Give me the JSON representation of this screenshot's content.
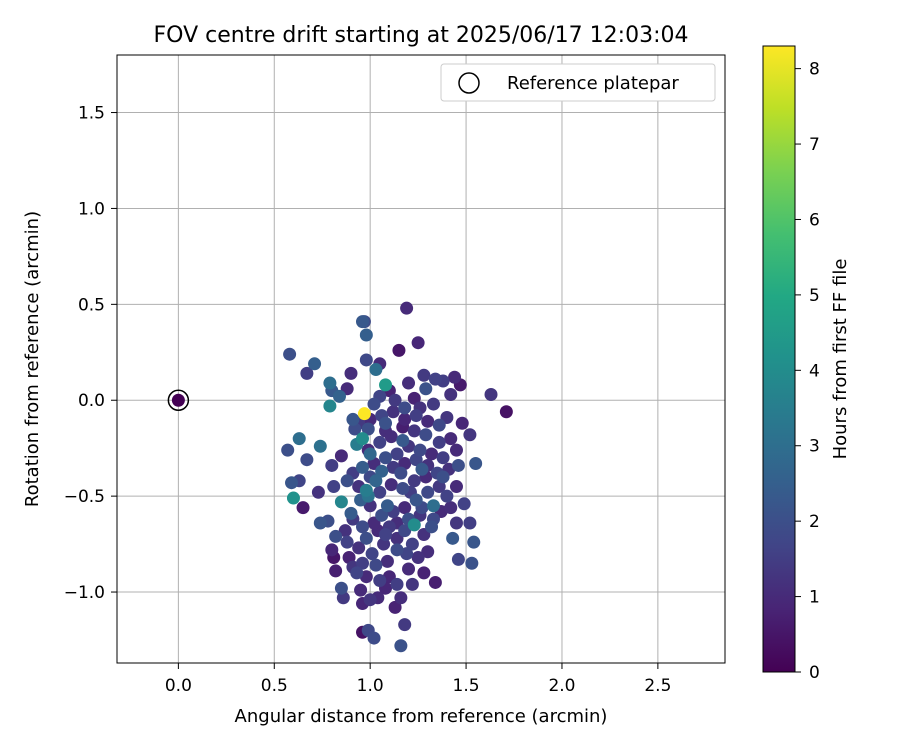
{
  "chart_data": {
    "type": "scatter",
    "title": "FOV centre drift starting at 2025/06/17 12:03:04",
    "xlabel": "Angular distance from reference (arcmin)",
    "ylabel": "Rotation from reference (arcmin)",
    "xlim": [
      -0.32,
      2.85
    ],
    "ylim": [
      -1.37,
      1.8
    ],
    "xticks": [
      0.0,
      0.5,
      1.0,
      1.5,
      2.0,
      2.5
    ],
    "xtick_labels": [
      "0.0",
      "0.5",
      "1.0",
      "1.5",
      "2.0",
      "2.5"
    ],
    "yticks": [
      -1.0,
      -0.5,
      0.0,
      0.5,
      1.0,
      1.5
    ],
    "ytick_labels": [
      "−1.0",
      "−0.5",
      "0.0",
      "0.5",
      "1.0",
      "1.5"
    ],
    "grid": true,
    "legend": {
      "position": "top-right",
      "entries": [
        "Reference platepar"
      ]
    },
    "reference_point": {
      "x": 0.0,
      "y": 0.0
    },
    "colorbar": {
      "label": "Hours from first FF file",
      "min": 0,
      "max": 8.3,
      "ticks": [
        0,
        1,
        2,
        3,
        4,
        5,
        6,
        7,
        8
      ],
      "tick_labels": [
        "0",
        "1",
        "2",
        "3",
        "4",
        "5",
        "6",
        "7",
        "8"
      ],
      "colormap": "viridis"
    },
    "points": [
      {
        "x": 1.19,
        "y": 0.48,
        "h": 1.0
      },
      {
        "x": 0.96,
        "y": 0.41,
        "h": 2.3
      },
      {
        "x": 0.98,
        "y": 0.34,
        "h": 2.5
      },
      {
        "x": 0.97,
        "y": 0.41,
        "h": 1.9
      },
      {
        "x": 1.25,
        "y": 0.3,
        "h": 0.9
      },
      {
        "x": 0.58,
        "y": 0.24,
        "h": 2.0
      },
      {
        "x": 0.71,
        "y": 0.19,
        "h": 2.5
      },
      {
        "x": 1.05,
        "y": 0.19,
        "h": 1.0
      },
      {
        "x": 1.15,
        "y": 0.26,
        "h": 0.5
      },
      {
        "x": 0.98,
        "y": 0.21,
        "h": 1.8
      },
      {
        "x": 0.67,
        "y": 0.14,
        "h": 1.5
      },
      {
        "x": 1.03,
        "y": 0.16,
        "h": 3.0
      },
      {
        "x": 1.08,
        "y": 0.08,
        "h": 4.5
      },
      {
        "x": 0.9,
        "y": 0.14,
        "h": 1.1
      },
      {
        "x": 1.28,
        "y": 0.13,
        "h": 1.4
      },
      {
        "x": 1.34,
        "y": 0.11,
        "h": 1.6
      },
      {
        "x": 1.44,
        "y": 0.12,
        "h": 1.0
      },
      {
        "x": 1.47,
        "y": 0.08,
        "h": 0.6
      },
      {
        "x": 1.63,
        "y": 0.03,
        "h": 1.3
      },
      {
        "x": 0.79,
        "y": 0.09,
        "h": 3.0
      },
      {
        "x": 0.8,
        "y": 0.05,
        "h": 2.3
      },
      {
        "x": 0.84,
        "y": 0.02,
        "h": 2.6
      },
      {
        "x": 0.79,
        "y": -0.03,
        "h": 3.8
      },
      {
        "x": 0.88,
        "y": 0.06,
        "h": 1.0
      },
      {
        "x": 1.1,
        "y": 0.05,
        "h": 0.8
      },
      {
        "x": 1.2,
        "y": 0.09,
        "h": 1.1
      },
      {
        "x": 1.29,
        "y": 0.06,
        "h": 2.1
      },
      {
        "x": 1.38,
        "y": 0.1,
        "h": 1.5
      },
      {
        "x": 1.42,
        "y": 0.03,
        "h": 1.2
      },
      {
        "x": 1.23,
        "y": 0.01,
        "h": 0.8
      },
      {
        "x": 1.71,
        "y": -0.06,
        "h": 0.4
      },
      {
        "x": 0.97,
        "y": -0.07,
        "h": 8.3
      },
      {
        "x": 0.91,
        "y": -0.1,
        "h": 2.2
      },
      {
        "x": 1.02,
        "y": -0.02,
        "h": 1.9
      },
      {
        "x": 1.33,
        "y": -0.02,
        "h": 1.4
      },
      {
        "x": 1.4,
        "y": -0.09,
        "h": 1.3
      },
      {
        "x": 1.48,
        "y": -0.12,
        "h": 0.9
      },
      {
        "x": 1.52,
        "y": -0.18,
        "h": 1.3
      },
      {
        "x": 1.17,
        "y": -0.14,
        "h": 0.7
      },
      {
        "x": 1.08,
        "y": -0.16,
        "h": 1.1
      },
      {
        "x": 0.92,
        "y": -0.15,
        "h": 1.9
      },
      {
        "x": 0.96,
        "y": -0.2,
        "h": 4.0
      },
      {
        "x": 0.93,
        "y": -0.23,
        "h": 3.5
      },
      {
        "x": 0.99,
        "y": -0.26,
        "h": 1.0
      },
      {
        "x": 0.63,
        "y": -0.2,
        "h": 3.0
      },
      {
        "x": 0.57,
        "y": -0.26,
        "h": 2.0
      },
      {
        "x": 0.74,
        "y": -0.24,
        "h": 3.1
      },
      {
        "x": 0.67,
        "y": -0.31,
        "h": 1.9
      },
      {
        "x": 0.8,
        "y": -0.34,
        "h": 1.5
      },
      {
        "x": 0.85,
        "y": -0.29,
        "h": 1.0
      },
      {
        "x": 0.59,
        "y": -0.43,
        "h": 2.2
      },
      {
        "x": 0.63,
        "y": -0.42,
        "h": 1.7
      },
      {
        "x": 0.6,
        "y": -0.51,
        "h": 4.2
      },
      {
        "x": 0.65,
        "y": -0.56,
        "h": 0.6
      },
      {
        "x": 0.73,
        "y": -0.48,
        "h": 1.2
      },
      {
        "x": 0.81,
        "y": -0.45,
        "h": 1.6
      },
      {
        "x": 0.85,
        "y": -0.53,
        "h": 3.8
      },
      {
        "x": 0.9,
        "y": -0.59,
        "h": 2.4
      },
      {
        "x": 0.78,
        "y": -0.63,
        "h": 2.0
      },
      {
        "x": 0.74,
        "y": -0.64,
        "h": 2.2
      },
      {
        "x": 0.87,
        "y": -0.68,
        "h": 1.2
      },
      {
        "x": 0.82,
        "y": -0.71,
        "h": 2.0
      },
      {
        "x": 0.8,
        "y": -0.78,
        "h": 0.9
      },
      {
        "x": 0.81,
        "y": -0.82,
        "h": 0.5
      },
      {
        "x": 0.82,
        "y": -0.89,
        "h": 0.7
      },
      {
        "x": 0.89,
        "y": -0.82,
        "h": 0.8
      },
      {
        "x": 0.91,
        "y": -0.87,
        "h": 1.3
      },
      {
        "x": 0.93,
        "y": -0.9,
        "h": 1.7
      },
      {
        "x": 0.96,
        "y": -0.85,
        "h": 1.5
      },
      {
        "x": 0.85,
        "y": -0.98,
        "h": 2.0
      },
      {
        "x": 0.86,
        "y": -1.03,
        "h": 1.4
      },
      {
        "x": 0.95,
        "y": -0.99,
        "h": 1.0
      },
      {
        "x": 0.96,
        "y": -1.06,
        "h": 0.9
      },
      {
        "x": 1.0,
        "y": -1.04,
        "h": 1.3
      },
      {
        "x": 1.04,
        "y": -1.03,
        "h": 1.0
      },
      {
        "x": 1.13,
        "y": -1.08,
        "h": 0.8
      },
      {
        "x": 1.16,
        "y": -1.03,
        "h": 1.1
      },
      {
        "x": 0.96,
        "y": -1.21,
        "h": 0.4
      },
      {
        "x": 0.99,
        "y": -1.2,
        "h": 1.8
      },
      {
        "x": 1.02,
        "y": -1.24,
        "h": 1.9
      },
      {
        "x": 1.16,
        "y": -1.28,
        "h": 2.1
      },
      {
        "x": 1.18,
        "y": -1.17,
        "h": 1.4
      },
      {
        "x": 1.05,
        "y": -0.94,
        "h": 1.5
      },
      {
        "x": 1.1,
        "y": -0.92,
        "h": 0.9
      },
      {
        "x": 1.2,
        "y": -0.88,
        "h": 1.0
      },
      {
        "x": 1.28,
        "y": -0.9,
        "h": 0.8
      },
      {
        "x": 1.34,
        "y": -0.95,
        "h": 0.7
      },
      {
        "x": 1.25,
        "y": -0.82,
        "h": 1.2
      },
      {
        "x": 1.3,
        "y": -0.79,
        "h": 1.1
      },
      {
        "x": 1.22,
        "y": -0.75,
        "h": 1.6
      },
      {
        "x": 1.14,
        "y": -0.78,
        "h": 1.9
      },
      {
        "x": 1.07,
        "y": -0.75,
        "h": 1.3
      },
      {
        "x": 1.01,
        "y": -0.8,
        "h": 1.7
      },
      {
        "x": 0.98,
        "y": -0.72,
        "h": 2.0
      },
      {
        "x": 1.04,
        "y": -0.68,
        "h": 1.0
      },
      {
        "x": 1.1,
        "y": -0.66,
        "h": 1.4
      },
      {
        "x": 1.18,
        "y": -0.68,
        "h": 1.8
      },
      {
        "x": 1.23,
        "y": -0.65,
        "h": 4.0
      },
      {
        "x": 1.28,
        "y": -0.7,
        "h": 1.2
      },
      {
        "x": 1.32,
        "y": -0.66,
        "h": 2.0
      },
      {
        "x": 1.43,
        "y": -0.72,
        "h": 2.3
      },
      {
        "x": 1.45,
        "y": -0.64,
        "h": 1.3
      },
      {
        "x": 1.52,
        "y": -0.64,
        "h": 1.5
      },
      {
        "x": 1.54,
        "y": -0.74,
        "h": 2.2
      },
      {
        "x": 1.46,
        "y": -0.83,
        "h": 1.7
      },
      {
        "x": 1.53,
        "y": -0.85,
        "h": 2.1
      },
      {
        "x": 1.37,
        "y": -0.58,
        "h": 1.0
      },
      {
        "x": 1.33,
        "y": -0.55,
        "h": 3.0
      },
      {
        "x": 1.4,
        "y": -0.5,
        "h": 1.6
      },
      {
        "x": 1.45,
        "y": -0.45,
        "h": 1.0
      },
      {
        "x": 1.36,
        "y": -0.45,
        "h": 1.4
      },
      {
        "x": 1.3,
        "y": -0.48,
        "h": 1.8
      },
      {
        "x": 1.24,
        "y": -0.52,
        "h": 2.2
      },
      {
        "x": 1.18,
        "y": -0.56,
        "h": 1.0
      },
      {
        "x": 1.12,
        "y": -0.58,
        "h": 1.5
      },
      {
        "x": 1.06,
        "y": -0.6,
        "h": 2.0
      },
      {
        "x": 1.0,
        "y": -0.55,
        "h": 1.2
      },
      {
        "x": 0.95,
        "y": -0.52,
        "h": 2.5
      },
      {
        "x": 0.99,
        "y": -0.5,
        "h": 3.2
      },
      {
        "x": 1.05,
        "y": -0.48,
        "h": 1.6
      },
      {
        "x": 1.11,
        "y": -0.44,
        "h": 1.1
      },
      {
        "x": 1.17,
        "y": -0.46,
        "h": 1.9
      },
      {
        "x": 1.23,
        "y": -0.42,
        "h": 1.4
      },
      {
        "x": 1.29,
        "y": -0.4,
        "h": 1.0
      },
      {
        "x": 1.35,
        "y": -0.38,
        "h": 1.7
      },
      {
        "x": 1.41,
        "y": -0.36,
        "h": 1.2
      },
      {
        "x": 1.46,
        "y": -0.34,
        "h": 2.0
      },
      {
        "x": 1.55,
        "y": -0.33,
        "h": 2.2
      },
      {
        "x": 1.38,
        "y": -0.3,
        "h": 1.5
      },
      {
        "x": 1.32,
        "y": -0.28,
        "h": 1.0
      },
      {
        "x": 1.26,
        "y": -0.26,
        "h": 1.8
      },
      {
        "x": 1.2,
        "y": -0.24,
        "h": 1.3
      },
      {
        "x": 1.14,
        "y": -0.28,
        "h": 1.6
      },
      {
        "x": 1.08,
        "y": -0.3,
        "h": 2.0
      },
      {
        "x": 1.02,
        "y": -0.33,
        "h": 1.1
      },
      {
        "x": 0.96,
        "y": -0.35,
        "h": 2.4
      },
      {
        "x": 0.91,
        "y": -0.38,
        "h": 1.5
      },
      {
        "x": 0.88,
        "y": -0.42,
        "h": 2.0
      },
      {
        "x": 0.94,
        "y": -0.45,
        "h": 1.2
      },
      {
        "x": 1.0,
        "y": -0.4,
        "h": 1.8
      },
      {
        "x": 1.06,
        "y": -0.37,
        "h": 2.6
      },
      {
        "x": 1.12,
        "y": -0.35,
        "h": 1.4
      },
      {
        "x": 1.18,
        "y": -0.33,
        "h": 1.0
      },
      {
        "x": 1.24,
        "y": -0.31,
        "h": 1.7
      },
      {
        "x": 1.3,
        "y": -0.34,
        "h": 1.2
      },
      {
        "x": 1.36,
        "y": -0.22,
        "h": 1.5
      },
      {
        "x": 1.42,
        "y": -0.2,
        "h": 1.0
      },
      {
        "x": 1.29,
        "y": -0.18,
        "h": 1.9
      },
      {
        "x": 1.23,
        "y": -0.16,
        "h": 1.3
      },
      {
        "x": 1.17,
        "y": -0.21,
        "h": 2.3
      },
      {
        "x": 1.11,
        "y": -0.19,
        "h": 1.1
      },
      {
        "x": 1.05,
        "y": -0.22,
        "h": 1.6
      },
      {
        "x": 0.99,
        "y": -0.15,
        "h": 2.0
      },
      {
        "x": 0.94,
        "y": -0.12,
        "h": 1.4
      },
      {
        "x": 1.0,
        "y": -0.1,
        "h": 1.0
      },
      {
        "x": 1.06,
        "y": -0.08,
        "h": 1.7
      },
      {
        "x": 1.12,
        "y": -0.06,
        "h": 1.2
      },
      {
        "x": 1.18,
        "y": -0.04,
        "h": 1.9
      },
      {
        "x": 1.24,
        "y": -0.08,
        "h": 1.5
      },
      {
        "x": 1.3,
        "y": -0.11,
        "h": 1.0
      },
      {
        "x": 1.36,
        "y": -0.13,
        "h": 1.8
      },
      {
        "x": 1.26,
        "y": -0.6,
        "h": 1.3
      },
      {
        "x": 1.2,
        "y": -0.62,
        "h": 2.0
      },
      {
        "x": 1.14,
        "y": -0.64,
        "h": 1.1
      },
      {
        "x": 1.08,
        "y": -0.7,
        "h": 1.6
      },
      {
        "x": 1.02,
        "y": -0.64,
        "h": 1.0
      },
      {
        "x": 0.96,
        "y": -0.66,
        "h": 1.9
      },
      {
        "x": 0.91,
        "y": -0.62,
        "h": 1.4
      },
      {
        "x": 1.14,
        "y": -0.72,
        "h": 1.2
      },
      {
        "x": 1.19,
        "y": -0.8,
        "h": 1.7
      },
      {
        "x": 1.09,
        "y": -0.84,
        "h": 1.1
      },
      {
        "x": 1.03,
        "y": -0.86,
        "h": 1.8
      },
      {
        "x": 0.98,
        "y": -0.92,
        "h": 1.0
      },
      {
        "x": 1.14,
        "y": -0.96,
        "h": 1.5
      },
      {
        "x": 1.08,
        "y": -0.98,
        "h": 0.9
      },
      {
        "x": 1.22,
        "y": -0.96,
        "h": 1.3
      },
      {
        "x": 1.38,
        "y": -0.4,
        "h": 2.0
      },
      {
        "x": 1.09,
        "y": -0.55,
        "h": 2.4
      },
      {
        "x": 0.88,
        "y": -0.74,
        "h": 1.6
      },
      {
        "x": 0.94,
        "y": -0.77,
        "h": 1.2
      },
      {
        "x": 1.33,
        "y": -0.62,
        "h": 1.8
      },
      {
        "x": 1.42,
        "y": -0.56,
        "h": 1.1
      },
      {
        "x": 1.49,
        "y": -0.54,
        "h": 1.6
      },
      {
        "x": 1.27,
        "y": -0.36,
        "h": 2.3
      },
      {
        "x": 1.16,
        "y": -0.38,
        "h": 1.9
      },
      {
        "x": 1.0,
        "y": -0.28,
        "h": 2.8
      },
      {
        "x": 1.08,
        "y": -0.12,
        "h": 2.1
      },
      {
        "x": 1.13,
        "y": 0.0,
        "h": 1.4
      },
      {
        "x": 1.05,
        "y": 0.02,
        "h": 1.7
      },
      {
        "x": 1.18,
        "y": -0.1,
        "h": 0.9
      },
      {
        "x": 1.26,
        "y": -0.04,
        "h": 1.2
      },
      {
        "x": 1.45,
        "y": -0.26,
        "h": 1.0
      },
      {
        "x": 0.98,
        "y": -0.47,
        "h": 3.5
      },
      {
        "x": 1.03,
        "y": -0.42,
        "h": 2.7
      },
      {
        "x": 1.21,
        "y": -0.48,
        "h": 1.5
      },
      {
        "x": 1.27,
        "y": -0.56,
        "h": 1.9
      }
    ]
  }
}
